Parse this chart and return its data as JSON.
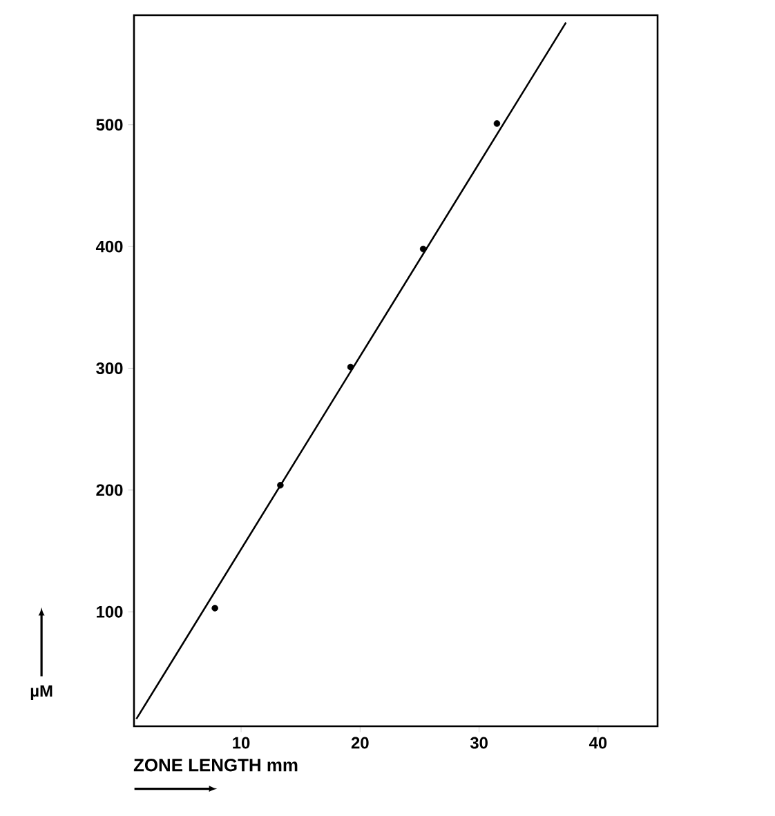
{
  "chart_data": {
    "type": "scatter",
    "xlabel": "ZONE LENGTH mm",
    "ylabel": "µM",
    "series": [
      {
        "marker": "circle",
        "color": "#000000",
        "x": [
          7.8,
          13.3,
          19.2,
          25.3,
          31.5
        ],
        "values": [
          103,
          204,
          301,
          398,
          501
        ]
      },
      {
        "type": "line",
        "color": "#000000",
        "x": [
          1.2,
          37.3
        ],
        "values": [
          12,
          584
        ],
        "marker": "none"
      }
    ],
    "line_style": "solid",
    "xlim": [
      1,
      45
    ],
    "ylim": [
      6,
      590
    ],
    "xticks": [
      10,
      20,
      30,
      40
    ],
    "yticks": [
      100,
      200,
      300,
      400,
      500
    ],
    "grid": false
  }
}
